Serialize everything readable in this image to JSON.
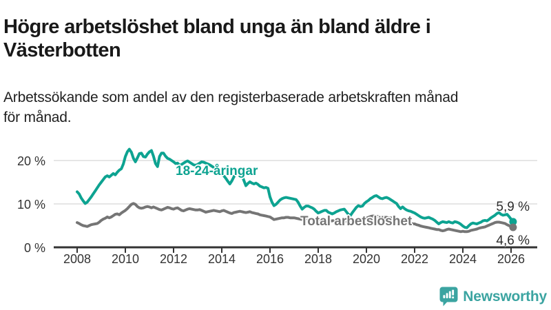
{
  "header": {
    "title_lines": [
      "Högre arbetslöshet bland unga än bland äldre i",
      "Västerbotten"
    ],
    "subtitle_lines": [
      "Arbetssökande som andel av den registerbaserade arbetskraften månad",
      "för månad."
    ]
  },
  "footer": {
    "brand": "Newsworthy"
  },
  "colors": {
    "youth_line": "#0da391",
    "total_line": "#757575",
    "gridline": "#d8d8d8",
    "axis": "#333333",
    "text": "#1a1a1a",
    "brand_teal": "#3ba4a1"
  },
  "chart_data": {
    "type": "line",
    "title": "Högre arbetslöshet bland unga än bland äldre i Västerbotten",
    "subtitle": "Arbetssökande som andel av den registerbaserade arbetskraften månad för månad.",
    "xlabel": "",
    "ylabel": "",
    "unit": "%",
    "grid": "horizontal",
    "legend_position": "inline-labels",
    "x_range": [
      2007.03,
      2027.09
    ],
    "y_range": [
      0,
      25
    ],
    "x_ticks": [
      2008,
      2010,
      2012,
      2014,
      2016,
      2018,
      2020,
      2022,
      2024,
      2026
    ],
    "y_ticks": [
      {
        "value": 0,
        "label": "0 %"
      },
      {
        "value": 10,
        "label": "10 %"
      },
      {
        "value": 20,
        "label": "20 %"
      }
    ],
    "series": [
      {
        "name": "18-24-åringar",
        "color": "#0da391",
        "end_label": "5,9 %",
        "end_value": 5.9,
        "start_year": 2008,
        "interval_months": 1,
        "values": [
          12.8,
          12.3,
          11.4,
          10.7,
          10.1,
          10.4,
          11.0,
          11.6,
          12.3,
          13.0,
          13.7,
          14.4,
          15.0,
          15.6,
          16.2,
          16.5,
          16.2,
          16.6,
          17.0,
          16.7,
          17.3,
          17.8,
          18.1,
          19.2,
          20.9,
          22.0,
          22.6,
          21.9,
          20.5,
          19.7,
          20.6,
          21.6,
          21.7,
          20.9,
          20.8,
          21.5,
          22.0,
          22.3,
          21.0,
          19.3,
          18.6,
          20.9,
          21.7,
          21.7,
          21.0,
          20.5,
          20.3,
          20.0,
          19.7,
          19.3,
          19.4,
          18.9,
          19.1,
          19.4,
          19.7,
          19.9,
          19.6,
          19.3,
          19.0,
          18.9,
          19.1,
          19.4,
          19.7,
          19.6,
          19.4,
          19.2,
          19.0,
          18.7,
          18.4,
          18.1,
          17.8,
          17.4,
          17.0,
          16.5,
          15.9,
          15.2,
          14.6,
          15.3,
          16.2,
          17.0,
          17.9,
          17.5,
          16.6,
          15.4,
          14.2,
          14.7,
          15.1,
          14.8,
          14.6,
          14.8,
          14.5,
          14.1,
          13.9,
          13.7,
          13.8,
          13.6,
          11.6,
          10.4,
          9.6,
          9.9,
          10.4,
          10.9,
          11.2,
          11.4,
          11.5,
          11.4,
          11.3,
          11.2,
          11.1,
          11.0,
          10.4,
          9.5,
          8.8,
          9.2,
          9.5,
          9.5,
          9.3,
          9.1,
          8.8,
          8.3,
          7.9,
          8.1,
          8.3,
          8.5,
          8.5,
          8.1,
          7.9,
          7.7,
          7.9,
          8.2,
          8.4,
          8.6,
          8.7,
          8.8,
          8.2,
          7.6,
          7.3,
          8.0,
          8.6,
          9.2,
          9.6,
          9.4,
          9.5,
          10.1,
          10.5,
          10.8,
          11.2,
          11.5,
          11.8,
          11.9,
          11.6,
          11.3,
          11.2,
          11.4,
          11.5,
          11.3,
          11.0,
          10.7,
          10.4,
          10.1,
          9.4,
          8.9,
          9.3,
          8.9,
          8.6,
          8.4,
          8.3,
          8.1,
          7.9,
          7.6,
          7.3,
          7.0,
          6.8,
          6.7,
          6.8,
          6.9,
          6.7,
          6.5,
          6.2,
          5.8,
          5.4,
          5.7,
          5.9,
          5.8,
          5.7,
          5.9,
          5.7,
          5.6,
          5.9,
          5.8,
          5.6,
          5.3,
          4.9,
          4.6,
          4.5,
          5.0,
          5.4,
          5.6,
          5.5,
          5.4,
          5.6,
          5.8,
          6.1,
          6.2,
          6.1,
          6.4,
          6.8,
          7.1,
          7.4,
          7.8,
          8.0,
          7.6,
          7.4,
          7.5,
          7.6,
          7.1,
          6.5,
          5.9
        ]
      },
      {
        "name": "Total arbetslöshet",
        "color": "#757575",
        "end_label": "4,6 %",
        "end_value": 4.6,
        "start_year": 2008,
        "interval_months": 1,
        "values": [
          5.7,
          5.5,
          5.2,
          5.0,
          4.9,
          4.8,
          5.0,
          5.2,
          5.3,
          5.4,
          5.5,
          5.8,
          6.2,
          6.5,
          6.7,
          7.0,
          6.8,
          7.0,
          7.3,
          7.6,
          7.7,
          7.5,
          7.9,
          8.2,
          8.5,
          8.9,
          9.4,
          9.9,
          10.1,
          9.9,
          9.4,
          9.1,
          9.0,
          9.1,
          9.3,
          9.4,
          9.3,
          9.1,
          9.3,
          9.1,
          8.9,
          8.7,
          8.6,
          8.8,
          9.0,
          9.2,
          9.1,
          8.9,
          8.8,
          9.0,
          9.1,
          8.8,
          8.5,
          8.4,
          8.6,
          8.8,
          8.9,
          8.8,
          8.7,
          8.6,
          8.6,
          8.7,
          8.5,
          8.3,
          8.1,
          8.2,
          8.3,
          8.4,
          8.5,
          8.4,
          8.3,
          8.2,
          8.4,
          8.5,
          8.3,
          8.1,
          7.9,
          7.8,
          8.0,
          8.1,
          8.2,
          8.3,
          8.2,
          8.1,
          8.0,
          8.1,
          8.2,
          8.0,
          7.9,
          7.8,
          7.7,
          7.5,
          7.4,
          7.3,
          7.2,
          7.1,
          7.0,
          6.7,
          6.4,
          6.5,
          6.6,
          6.7,
          6.8,
          6.8,
          6.9,
          6.9,
          6.8,
          6.8,
          6.8,
          6.7,
          6.6,
          6.5,
          6.4,
          6.4,
          6.5,
          6.5,
          6.4,
          6.4,
          6.3,
          6.3,
          6.2,
          6.2,
          6.3,
          6.3,
          6.2,
          6.2,
          6.1,
          6.1,
          6.2,
          6.2,
          6.1,
          6.1,
          6.1,
          6.0,
          6.0,
          6.1,
          6.1,
          6.2,
          6.2,
          6.3,
          6.3,
          6.4,
          6.5,
          6.6,
          6.7,
          6.9,
          7.1,
          7.2,
          7.2,
          7.1,
          7.1,
          7.0,
          7.0,
          6.9,
          6.9,
          6.8,
          6.8,
          6.7,
          6.6,
          6.5,
          6.3,
          6.2,
          6.0,
          5.9,
          5.8,
          5.7,
          5.5,
          5.4,
          5.4,
          5.2,
          5.1,
          4.9,
          4.8,
          4.7,
          4.6,
          4.5,
          4.4,
          4.3,
          4.2,
          4.1,
          4.1,
          3.9,
          3.8,
          3.9,
          4.1,
          4.2,
          4.1,
          4.0,
          3.9,
          3.8,
          3.7,
          3.6,
          3.7,
          3.6,
          3.6,
          3.7,
          3.9,
          4.0,
          4.1,
          4.2,
          4.4,
          4.5,
          4.6,
          4.7,
          4.9,
          5.1,
          5.3,
          5.5,
          5.7,
          5.8,
          5.8,
          5.7,
          5.6,
          5.5,
          5.2,
          5.0,
          4.8,
          4.6
        ]
      }
    ]
  }
}
